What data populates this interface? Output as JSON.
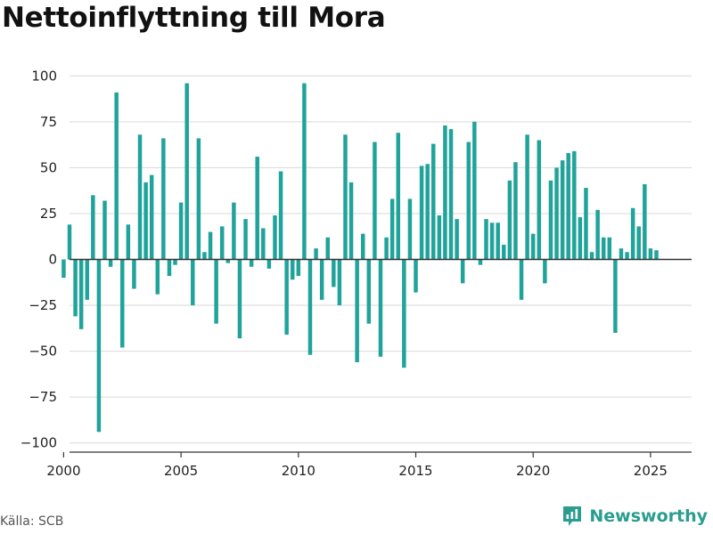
{
  "title": "Nettoinflyttning till Mora",
  "source": "Källa: SCB",
  "brand": {
    "name": "Newsworthy",
    "color": "#2a9d8f"
  },
  "colors": {
    "bar": "#1fa39a",
    "grid": "#d9d9d9",
    "zero_line": "#333333",
    "axis": "#333333"
  },
  "chart_data": {
    "type": "bar",
    "title": "Nettoinflyttning till Mora",
    "xlabel": "",
    "ylabel": "",
    "ylim": [
      -105,
      105
    ],
    "xlim": [
      2000.25,
      2026.75
    ],
    "grid": true,
    "legend": "none",
    "y_ticks": [
      {
        "value": 100,
        "label": "100"
      },
      {
        "value": 75,
        "label": "75"
      },
      {
        "value": 50,
        "label": "50"
      },
      {
        "value": 25,
        "label": "25"
      },
      {
        "value": 0,
        "label": "0"
      },
      {
        "value": -25,
        "label": "−25"
      },
      {
        "value": -50,
        "label": "−50"
      },
      {
        "value": -75,
        "label": "−75"
      },
      {
        "value": -100,
        "label": "−100"
      }
    ],
    "x_ticks": [
      {
        "value": 2000,
        "label": "2000"
      },
      {
        "value": 2005,
        "label": "2005"
      },
      {
        "value": 2010,
        "label": "2010"
      },
      {
        "value": 2015,
        "label": "2015"
      },
      {
        "value": 2020,
        "label": "2020"
      },
      {
        "value": 2025,
        "label": "2025"
      }
    ],
    "series": [
      {
        "start_year": 2000,
        "periods_per_year": 4,
        "values": [
          -10,
          19,
          -31,
          -38,
          -22,
          35,
          -94,
          32,
          -4,
          91,
          -48,
          19,
          -16,
          68,
          42,
          46,
          -19,
          66,
          -9,
          -3,
          31,
          96,
          -25,
          66,
          4,
          15,
          -35,
          18,
          -2,
          31,
          -43,
          22,
          -4,
          56,
          17,
          -5,
          24,
          48,
          -41,
          -11,
          -9,
          96,
          -52,
          6,
          -22,
          12,
          -15,
          -25,
          68,
          42,
          -56,
          14,
          -35,
          64,
          -53,
          12,
          33,
          69,
          -59,
          33,
          -18,
          51,
          52,
          63,
          24,
          73,
          71,
          22,
          -13,
          64,
          75,
          -3,
          22,
          20,
          20,
          8,
          43,
          53,
          -22,
          68,
          14,
          65,
          -13,
          43,
          50,
          54,
          58,
          59,
          23,
          39,
          4,
          27,
          12,
          12,
          -40,
          6,
          4,
          28,
          18,
          41,
          6,
          5
        ]
      }
    ]
  }
}
